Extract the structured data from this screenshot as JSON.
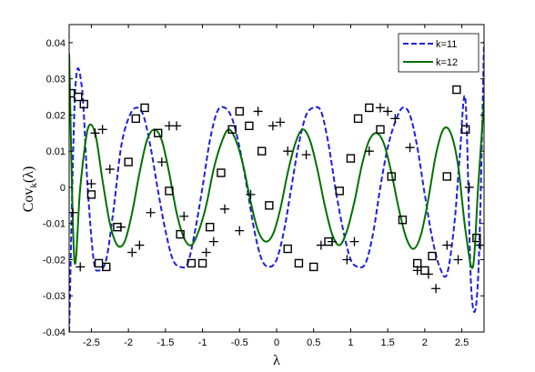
{
  "chart_data": {
    "type": "line",
    "xlabel": "λ",
    "ylabel_main": "Cov",
    "ylabel_sub": "k",
    "ylabel_arg": "(λ)",
    "xlim": [
      -2.8,
      2.8
    ],
    "ylim": [
      -0.04,
      0.045
    ],
    "x_ticks": [
      -2.5,
      -2,
      -1.5,
      -1,
      -0.5,
      0,
      0.5,
      1,
      1.5,
      2,
      2.5
    ],
    "x_tick_labels": [
      "-2.5",
      "-2",
      "-1.5",
      "-1",
      "-0.5",
      "0",
      "0.5",
      "1",
      "1.5",
      "2",
      "2.5"
    ],
    "y_ticks": [
      -0.04,
      -0.03,
      -0.02,
      -0.01,
      0,
      0.01,
      0.02,
      0.03,
      0.04
    ],
    "y_tick_labels": [
      "-0.04",
      "-0.03",
      "-0.02",
      "-0.01",
      "0",
      "0.01",
      "0.02",
      "0.03",
      "0.04"
    ],
    "legend_position": "top-right",
    "series": [
      {
        "name": "k=11",
        "style": "dashed",
        "color": "#1f1fe0",
        "x": [
          -2.8,
          -2.72,
          -2.63,
          -2.55,
          -2.47,
          -2.4,
          -2.3,
          -2.2,
          -2.1,
          -2.0,
          -1.9,
          -1.8,
          -1.7,
          -1.6,
          -1.5,
          -1.4,
          -1.3,
          -1.2,
          -1.1,
          -1.0,
          -0.9,
          -0.8,
          -0.7,
          -0.6,
          -0.5,
          -0.4,
          -0.3,
          -0.2,
          -0.1,
          0.0,
          0.1,
          0.2,
          0.3,
          0.4,
          0.5,
          0.6,
          0.7,
          0.8,
          0.9,
          1.0,
          1.1,
          1.2,
          1.3,
          1.4,
          1.5,
          1.6,
          1.7,
          1.8,
          1.9,
          2.0,
          2.1,
          2.2,
          2.3,
          2.4,
          2.47,
          2.55,
          2.63,
          2.72,
          2.8
        ],
        "y": [
          -0.04,
          0.026,
          0.028,
          0.0,
          -0.02,
          -0.023,
          -0.02,
          -0.006,
          0.011,
          0.019,
          0.022,
          0.02,
          0.011,
          -0.001,
          -0.012,
          -0.02,
          -0.022,
          -0.021,
          -0.012,
          0.0,
          0.013,
          0.021,
          0.022,
          0.019,
          0.011,
          0.0,
          -0.012,
          -0.02,
          -0.022,
          -0.02,
          -0.012,
          0.0,
          0.012,
          0.02,
          0.022,
          0.021,
          0.012,
          -0.001,
          -0.012,
          -0.02,
          -0.022,
          -0.021,
          -0.013,
          0.0,
          0.011,
          0.018,
          0.022,
          0.02,
          0.011,
          -0.002,
          -0.014,
          -0.022,
          -0.024,
          -0.01,
          0.008,
          0.024,
          -0.029,
          -0.025,
          0.04
        ]
      },
      {
        "name": "k=12",
        "style": "solid",
        "color": "#007000",
        "x": [
          -2.8,
          -2.73,
          -2.65,
          -2.55,
          -2.45,
          -2.35,
          -2.25,
          -2.15,
          -2.05,
          -1.95,
          -1.85,
          -1.75,
          -1.65,
          -1.55,
          -1.45,
          -1.35,
          -1.25,
          -1.15,
          -1.05,
          -0.95,
          -0.85,
          -0.75,
          -0.65,
          -0.55,
          -0.45,
          -0.35,
          -0.25,
          -0.15,
          -0.05,
          0.05,
          0.15,
          0.25,
          0.35,
          0.45,
          0.55,
          0.65,
          0.75,
          0.85,
          0.95,
          1.05,
          1.15,
          1.25,
          1.35,
          1.45,
          1.55,
          1.65,
          1.75,
          1.85,
          1.95,
          2.05,
          2.15,
          2.25,
          2.35,
          2.45,
          2.55,
          2.65,
          2.72,
          2.8
        ],
        "y": [
          0.037,
          -0.02,
          0.0,
          0.016,
          0.015,
          0.002,
          -0.01,
          -0.016,
          -0.015,
          -0.007,
          0.004,
          0.013,
          0.016,
          0.013,
          0.004,
          -0.007,
          -0.014,
          -0.016,
          -0.012,
          -0.005,
          0.005,
          0.012,
          0.016,
          0.013,
          0.006,
          -0.004,
          -0.012,
          -0.015,
          -0.013,
          -0.006,
          0.004,
          0.012,
          0.016,
          0.013,
          0.005,
          -0.005,
          -0.013,
          -0.016,
          -0.012,
          -0.004,
          0.006,
          0.013,
          0.015,
          0.012,
          0.004,
          -0.006,
          -0.014,
          -0.017,
          -0.013,
          -0.003,
          0.009,
          0.016,
          0.015,
          0.006,
          -0.012,
          -0.022,
          0.0,
          0.024
        ]
      }
    ],
    "markers": {
      "squares": {
        "x": [
          -2.78,
          -2.68,
          -2.6,
          -2.5,
          -2.4,
          -2.3,
          -2.15,
          -2.0,
          -1.9,
          -1.78,
          -1.6,
          -1.45,
          -1.3,
          -1.15,
          -1.0,
          -0.9,
          -0.75,
          -0.6,
          -0.5,
          -0.37,
          -0.2,
          -0.1,
          0.15,
          0.3,
          0.5,
          0.7,
          0.85,
          1.0,
          1.1,
          1.25,
          1.4,
          1.55,
          1.7,
          1.9,
          2.0,
          2.1,
          2.3,
          2.43,
          2.55,
          2.7
        ],
        "y": [
          0.026,
          0.025,
          0.023,
          -0.002,
          -0.021,
          -0.022,
          -0.011,
          0.007,
          0.019,
          0.022,
          0.015,
          -0.001,
          -0.013,
          -0.021,
          -0.021,
          -0.011,
          0.004,
          0.016,
          0.021,
          0.017,
          0.01,
          -0.005,
          -0.017,
          -0.021,
          -0.022,
          -0.015,
          -0.001,
          0.008,
          0.019,
          0.022,
          0.016,
          0.003,
          -0.009,
          -0.021,
          -0.023,
          -0.019,
          0.003,
          0.027,
          0.016,
          -0.014
        ]
      },
      "pluses": {
        "x": [
          -2.75,
          -2.65,
          -2.5,
          -2.45,
          -2.35,
          -2.25,
          -2.1,
          -1.95,
          -1.85,
          -1.7,
          -1.55,
          -1.45,
          -1.35,
          -1.25,
          -0.95,
          -0.85,
          -0.7,
          -0.5,
          -0.35,
          -0.25,
          -0.05,
          0.05,
          0.15,
          0.4,
          0.6,
          0.75,
          0.95,
          1.05,
          1.25,
          1.4,
          1.5,
          1.6,
          1.8,
          1.9,
          2.05,
          2.15,
          2.3,
          2.45,
          2.6,
          2.75
        ],
        "y": [
          -0.007,
          -0.022,
          0.001,
          0.015,
          0.016,
          0.005,
          -0.011,
          -0.018,
          -0.016,
          -0.007,
          0.007,
          0.017,
          0.017,
          -0.008,
          -0.018,
          -0.015,
          -0.006,
          -0.012,
          -0.002,
          0.021,
          0.017,
          0.018,
          0.01,
          0.009,
          -0.016,
          -0.015,
          -0.02,
          -0.015,
          0.01,
          0.022,
          0.021,
          0.019,
          0.011,
          -0.023,
          -0.024,
          -0.028,
          -0.016,
          -0.02,
          0.0,
          -0.016
        ]
      }
    }
  }
}
